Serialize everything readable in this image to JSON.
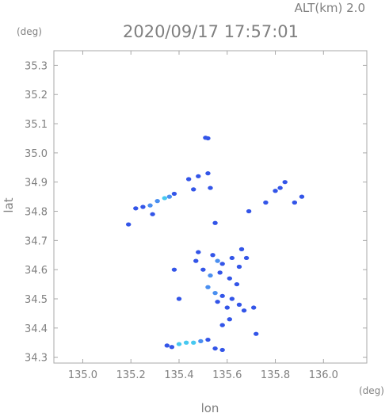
{
  "header": {
    "altitude_label": "ALT(km) 2.0",
    "timestamp": "2020/09/17 17:57:01"
  },
  "chart_data": {
    "type": "scatter",
    "title": "2020/09/17 17:57:01",
    "xlabel": "lon",
    "ylabel": "lat",
    "x_unit": "(deg)",
    "y_unit": "(deg)",
    "xlim": [
      134.88,
      136.18
    ],
    "ylim": [
      34.28,
      35.35
    ],
    "x_ticks": [
      "135.0",
      "135.2",
      "135.4",
      "135.6",
      "135.8",
      "136.0"
    ],
    "y_ticks": [
      "34.3",
      "34.4",
      "34.5",
      "34.6",
      "34.7",
      "34.8",
      "34.9",
      "35.0",
      "35.1",
      "35.2",
      "35.3"
    ],
    "grid": false,
    "colors": {
      "weak": "#3355e8",
      "medium": "#4a8ff0",
      "strong": "#46c8f0"
    },
    "series": [
      {
        "values": [
          [
            135.52,
            35.05,
            "weak"
          ],
          [
            135.51,
            35.052,
            "weak"
          ],
          [
            135.22,
            34.81,
            "weak"
          ],
          [
            135.25,
            34.815,
            "weak"
          ],
          [
            135.28,
            34.82,
            "medium"
          ],
          [
            135.31,
            34.835,
            "medium"
          ],
          [
            135.34,
            34.845,
            "strong"
          ],
          [
            135.36,
            34.85,
            "medium"
          ],
          [
            135.38,
            34.86,
            "weak"
          ],
          [
            135.29,
            34.79,
            "weak"
          ],
          [
            135.19,
            34.755,
            "weak"
          ],
          [
            135.44,
            34.91,
            "weak"
          ],
          [
            135.48,
            34.92,
            "weak"
          ],
          [
            135.52,
            34.93,
            "weak"
          ],
          [
            135.53,
            34.88,
            "weak"
          ],
          [
            135.46,
            34.875,
            "weak"
          ],
          [
            135.84,
            34.9,
            "weak"
          ],
          [
            135.82,
            34.88,
            "weak"
          ],
          [
            135.8,
            34.87,
            "weak"
          ],
          [
            135.76,
            34.83,
            "weak"
          ],
          [
            135.69,
            34.8,
            "weak"
          ],
          [
            135.88,
            34.83,
            "weak"
          ],
          [
            135.91,
            34.85,
            "weak"
          ],
          [
            135.55,
            34.76,
            "weak"
          ],
          [
            135.47,
            34.63,
            "weak"
          ],
          [
            135.48,
            34.66,
            "weak"
          ],
          [
            135.54,
            34.65,
            "weak"
          ],
          [
            135.56,
            34.63,
            "medium"
          ],
          [
            135.58,
            34.62,
            "weak"
          ],
          [
            135.62,
            34.64,
            "weak"
          ],
          [
            135.65,
            34.61,
            "weak"
          ],
          [
            135.66,
            34.67,
            "weak"
          ],
          [
            135.68,
            34.64,
            "weak"
          ],
          [
            135.5,
            34.6,
            "weak"
          ],
          [
            135.53,
            34.58,
            "medium"
          ],
          [
            135.57,
            34.59,
            "weak"
          ],
          [
            135.61,
            34.57,
            "weak"
          ],
          [
            135.64,
            34.55,
            "weak"
          ],
          [
            135.38,
            34.6,
            "weak"
          ],
          [
            135.52,
            34.54,
            "medium"
          ],
          [
            135.55,
            34.52,
            "medium"
          ],
          [
            135.58,
            34.51,
            "weak"
          ],
          [
            135.56,
            34.49,
            "weak"
          ],
          [
            135.6,
            34.47,
            "weak"
          ],
          [
            135.62,
            34.5,
            "weak"
          ],
          [
            135.65,
            34.48,
            "weak"
          ],
          [
            135.67,
            34.46,
            "weak"
          ],
          [
            135.71,
            34.47,
            "weak"
          ],
          [
            135.4,
            34.5,
            "weak"
          ],
          [
            135.58,
            34.41,
            "weak"
          ],
          [
            135.61,
            34.43,
            "weak"
          ],
          [
            135.72,
            34.38,
            "weak"
          ],
          [
            135.35,
            34.34,
            "weak"
          ],
          [
            135.37,
            34.335,
            "weak"
          ],
          [
            135.4,
            34.345,
            "strong"
          ],
          [
            135.43,
            34.35,
            "strong"
          ],
          [
            135.46,
            34.35,
            "strong"
          ],
          [
            135.49,
            34.355,
            "medium"
          ],
          [
            135.52,
            34.36,
            "weak"
          ],
          [
            135.55,
            34.33,
            "weak"
          ],
          [
            135.58,
            34.325,
            "weak"
          ]
        ]
      }
    ]
  }
}
